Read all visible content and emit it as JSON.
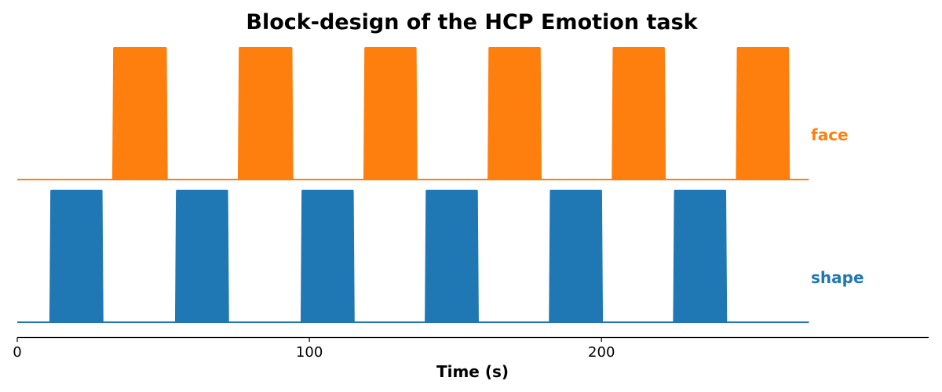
{
  "chart_data": {
    "type": "area",
    "title": "Block-design of the HCP Emotion task",
    "xlabel": "Time (s)",
    "ylabel": "",
    "xlim": [
      0,
      312
    ],
    "xticks": [
      0,
      100,
      200
    ],
    "xtick_labels": [
      "0",
      "100",
      "200"
    ],
    "grid": false,
    "legend": "none",
    "series": [
      {
        "name": "face",
        "color": "#ff7f0e",
        "baseline_range": [
          0,
          271
        ],
        "blocks": [
          [
            32.5,
            51.5
          ],
          [
            75.5,
            94.5
          ],
          [
            118.5,
            137
          ],
          [
            161,
            179.5
          ],
          [
            203.5,
            222
          ],
          [
            246,
            264.5
          ]
        ]
      },
      {
        "name": "shape",
        "color": "#1f77b4",
        "baseline_range": [
          0,
          271
        ],
        "blocks": [
          [
            11,
            29.5
          ],
          [
            54,
            72.5
          ],
          [
            97,
            115.5
          ],
          [
            139.5,
            158
          ],
          [
            182,
            200.5
          ],
          [
            224.5,
            243
          ]
        ]
      }
    ]
  }
}
